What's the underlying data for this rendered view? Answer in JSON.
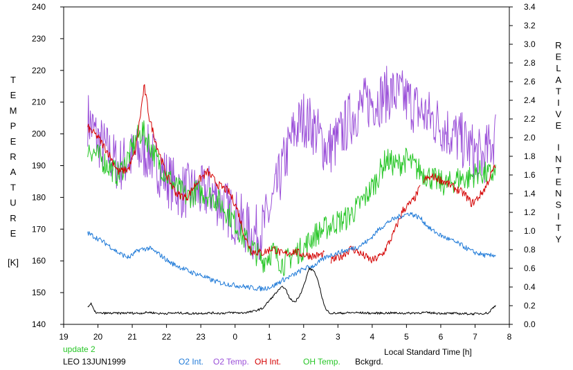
{
  "colors": {
    "o2_int": "#1f7ad8",
    "o2_temp": "#9a4fd8",
    "oh_int": "#d40000",
    "oh_temp": "#27c627",
    "bckgrd": "#000000",
    "update": "#27c627",
    "axis": "#000000"
  },
  "footer": {
    "update_label": "update 2",
    "station_date": "LEO 13JUN1999"
  },
  "chart_data": {
    "type": "line",
    "xlabel": "Local Standard Time [h]",
    "ylabel_left": "TEMPERATURE",
    "ylabel_left_unit": "[K]",
    "ylabel_right": "RELATIVE INTENSITY",
    "x_range": [
      19,
      32
    ],
    "x_tick_values": [
      19,
      20,
      21,
      22,
      23,
      24,
      25,
      26,
      27,
      28,
      29,
      30,
      31,
      32
    ],
    "x_tick_labels": [
      "19",
      "20",
      "21",
      "22",
      "23",
      "0",
      "1",
      "2",
      "3",
      "4",
      "5",
      "6",
      "7",
      "8"
    ],
    "ylim_left": [
      140,
      240
    ],
    "y_left_ticks": [
      140,
      150,
      160,
      170,
      180,
      190,
      200,
      210,
      220,
      230,
      240
    ],
    "ylim_right": [
      0.0,
      3.4
    ],
    "y_right_ticks": [
      0.0,
      0.2,
      0.4,
      0.6,
      0.8,
      1.0,
      1.2,
      1.4,
      1.6,
      1.8,
      2.0,
      2.2,
      2.4,
      2.6,
      2.8,
      3.0,
      3.2,
      3.4
    ],
    "y_right_tick_labels": [
      "0.0",
      "0.2",
      "0.4",
      "0.6",
      "0.8",
      "1.0",
      "1.2",
      "1.4",
      "1.6",
      "1.8",
      "2.0",
      "2.2",
      "2.4",
      "2.6",
      "2.8",
      "3.0",
      "3.2",
      "3.4"
    ],
    "series": [
      {
        "name": "O2 Int.",
        "key": "o2_int",
        "axis": "left",
        "noise": 0.8,
        "x": [
          19.7,
          20.0,
          20.3,
          20.6,
          20.9,
          21.2,
          21.5,
          21.8,
          22.1,
          22.4,
          22.7,
          23.0,
          23.3,
          23.6,
          23.9,
          24.2,
          24.5,
          24.8,
          25.1,
          25.4,
          25.7,
          26.0,
          26.3,
          26.5,
          26.7,
          27.0,
          27.3,
          27.6,
          27.9,
          28.2,
          28.5,
          28.8,
          29.1,
          29.4,
          29.7,
          30.0,
          30.3,
          30.6,
          30.9,
          31.2,
          31.4,
          31.6
        ],
        "y": [
          168.8,
          167.0,
          165.0,
          162.5,
          161.0,
          163.5,
          164.0,
          162.0,
          159.5,
          158.0,
          156.5,
          155.5,
          154.0,
          153.0,
          152.5,
          152.0,
          151.5,
          151.2,
          152.0,
          154.0,
          155.5,
          157.5,
          158.5,
          160.0,
          161.5,
          162.5,
          163.5,
          164.5,
          166.5,
          170.0,
          172.5,
          174.0,
          175.0,
          173.5,
          170.0,
          168.0,
          166.5,
          165.0,
          163.0,
          162.0,
          161.5,
          162.0
        ]
      },
      {
        "name": "O2 Temp.",
        "key": "o2_temp",
        "axis": "left",
        "noise": 9,
        "x": [
          19.7,
          20.0,
          20.3,
          20.6,
          20.9,
          21.2,
          21.5,
          21.8,
          22.1,
          22.4,
          22.7,
          23.0,
          23.3,
          23.6,
          23.9,
          24.2,
          24.5,
          24.8,
          25.1,
          25.4,
          25.7,
          26.0,
          26.3,
          26.5,
          26.7,
          27.0,
          27.3,
          27.6,
          27.9,
          28.2,
          28.5,
          28.8,
          29.1,
          29.4,
          29.7,
          30.0,
          30.3,
          30.6,
          30.9,
          31.2,
          31.4,
          31.6
        ],
        "y": [
          205.0,
          198.0,
          194.0,
          190.0,
          192.0,
          194.0,
          194.0,
          189.0,
          185.0,
          182.0,
          182.0,
          181.0,
          182.0,
          178.0,
          175.0,
          172.0,
          168.0,
          170.0,
          178.0,
          190.0,
          200.0,
          205.0,
          202.0,
          198.0,
          195.0,
          198.0,
          204.0,
          208.0,
          210.0,
          211.0,
          213.0,
          212.0,
          210.0,
          207.0,
          205.0,
          203.0,
          200.0,
          198.0,
          195.0,
          192.0,
          195.0,
          200.0
        ]
      },
      {
        "name": "OH Int.",
        "key": "oh_int",
        "axis": "left",
        "noise": 1.3,
        "x": [
          19.7,
          20.0,
          20.3,
          20.6,
          20.9,
          21.1,
          21.2,
          21.35,
          21.5,
          21.7,
          22.0,
          22.3,
          22.6,
          22.9,
          23.2,
          23.5,
          23.8,
          24.0,
          24.1,
          24.2,
          24.3,
          24.5,
          24.8,
          25.1,
          25.4,
          25.7,
          26.0,
          26.3,
          26.6
        ],
        "y": [
          202.0,
          199.0,
          194.0,
          188.0,
          189.0,
          195.0,
          203.0,
          215.0,
          205.0,
          197.0,
          187.0,
          181.0,
          180.0,
          185.0,
          188.0,
          184.0,
          182.0,
          178.0,
          175.0,
          171.0,
          167.0,
          163.0,
          162.5,
          164.0,
          162.0,
          163.0,
          162.0,
          161.5,
          162.0
        ]
      },
      {
        "name": "OH Int.",
        "key": "oh_int",
        "axis": "left",
        "noise": 1.3,
        "x": [
          26.8,
          27.1,
          27.4,
          27.7,
          28.0,
          28.3,
          28.6,
          28.9,
          29.2,
          29.4
        ],
        "y": [
          160.0,
          161.5,
          164.0,
          162.0,
          160.0,
          162.0,
          168.0,
          176.0,
          179.0,
          183.0
        ]
      },
      {
        "name": "OH Int.",
        "key": "oh_int",
        "axis": "left",
        "noise": 1.3,
        "x": [
          29.5,
          29.8,
          30.1,
          30.4,
          30.7,
          30.9,
          31.1,
          31.3,
          31.5,
          31.6
        ],
        "y": [
          185.5,
          186.5,
          185.0,
          183.0,
          181.0,
          178.0,
          180.0,
          183.0,
          188.0,
          190.0
        ]
      },
      {
        "name": "OH Temp.",
        "key": "oh_temp",
        "axis": "left",
        "noise": 4,
        "x": [
          19.7,
          20.0,
          20.3,
          20.6,
          20.9,
          21.1,
          21.3,
          21.5,
          21.7,
          22.0,
          22.3,
          22.6,
          22.9,
          23.2,
          23.5,
          23.8,
          24.0,
          24.2,
          24.5,
          24.8,
          25.1,
          25.4,
          25.7,
          26.0,
          26.3,
          26.6,
          26.9,
          27.2,
          27.5,
          27.8,
          28.1,
          28.4,
          28.7,
          29.0,
          29.3,
          29.6,
          29.9,
          30.2,
          30.5,
          30.8,
          31.1,
          31.4,
          31.6
        ],
        "y": [
          196.0,
          193.0,
          190.0,
          187.0,
          193.0,
          198.0,
          201.0,
          197.0,
          192.0,
          187.0,
          183.0,
          180.0,
          182.0,
          181.0,
          179.0,
          175.0,
          172.0,
          168.0,
          164.0,
          160.0,
          163.0,
          159.0,
          162.0,
          164.0,
          168.0,
          170.0,
          172.0,
          173.0,
          176.0,
          180.0,
          185.0,
          192.0,
          190.0,
          192.0,
          189.0,
          187.0,
          185.0,
          184.0,
          186.0,
          186.0,
          188.0,
          187.0,
          188.0
        ]
      },
      {
        "name": "Bckgrd.",
        "key": "bckgrd",
        "axis": "left",
        "noise": 0.35,
        "x": [
          19.7,
          19.8,
          19.9,
          20.0,
          20.3,
          20.6,
          20.9,
          21.2,
          21.5,
          21.8,
          22.1,
          22.4,
          22.7,
          23.0,
          23.3,
          23.6,
          23.9,
          24.2,
          24.5,
          24.8,
          25.0,
          25.2,
          25.4,
          25.5,
          25.6,
          25.75,
          25.9,
          26.05,
          26.15,
          26.3,
          26.45,
          26.55,
          26.65,
          26.8,
          27.0,
          27.5,
          28.0,
          28.5,
          29.0,
          29.5,
          30.0,
          30.5,
          31.0,
          31.4,
          31.5,
          31.6
        ],
        "y": [
          145.5,
          146.5,
          144.0,
          143.5,
          143.5,
          143.5,
          143.6,
          143.5,
          143.8,
          143.4,
          143.5,
          143.6,
          143.4,
          143.5,
          143.6,
          143.5,
          143.7,
          143.6,
          144.0,
          145.0,
          147.5,
          150.0,
          152.0,
          150.5,
          148.0,
          147.0,
          149.5,
          153.5,
          157.5,
          157.0,
          152.5,
          148.0,
          144.5,
          143.5,
          143.5,
          143.7,
          143.5,
          143.6,
          143.5,
          143.7,
          143.5,
          143.4,
          143.3,
          143.6,
          145.0,
          146.0
        ]
      }
    ],
    "legend": [
      {
        "label": "O2 Int.",
        "key": "o2_int"
      },
      {
        "label": "O2 Temp.",
        "key": "o2_temp"
      },
      {
        "label": "OH Int.",
        "key": "oh_int"
      },
      {
        "label": "OH Temp.",
        "key": "oh_temp"
      },
      {
        "label": "Bckgrd.",
        "key": "bckgrd"
      }
    ]
  }
}
